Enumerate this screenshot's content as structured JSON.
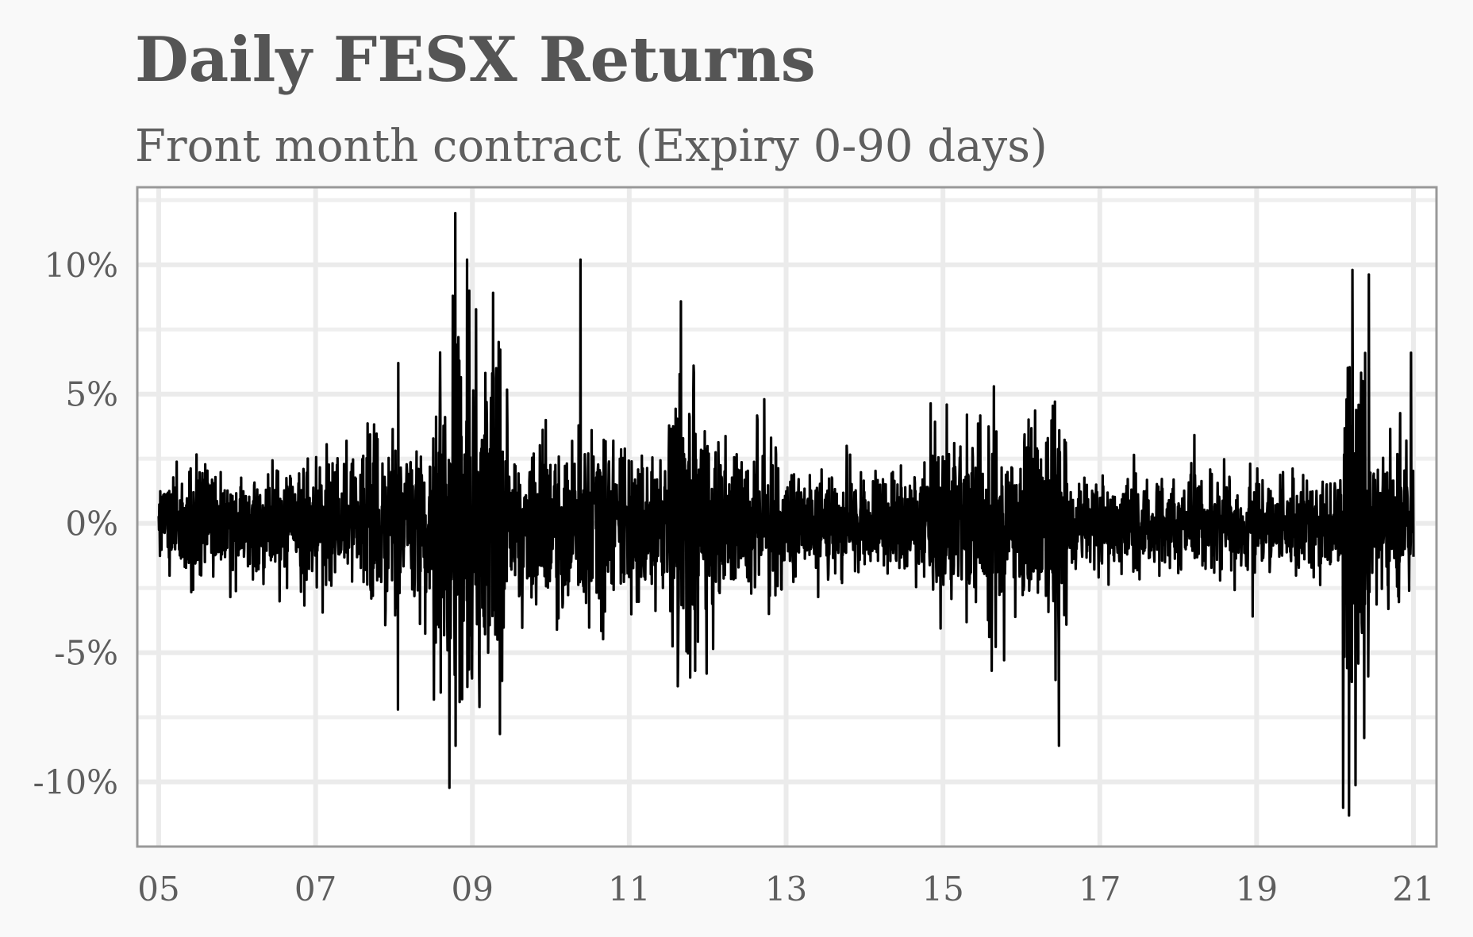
{
  "chart_data": {
    "type": "line",
    "title": "Daily FESX Returns",
    "subtitle": "Front month contract (Expiry 0-90 days)",
    "xlabel": "",
    "ylabel": "",
    "x_unit": "year",
    "x_range": [
      2005.0,
      2021.0
    ],
    "ylim": [
      -12.5,
      13.0
    ],
    "x_ticks": [
      2005,
      2007,
      2009,
      2011,
      2013,
      2015,
      2017,
      2019,
      2021
    ],
    "x_tick_labels": [
      "05",
      "07",
      "09",
      "11",
      "13",
      "15",
      "17",
      "19",
      "21"
    ],
    "y_ticks": [
      -10,
      -5,
      0,
      5,
      10
    ],
    "y_tick_labels": [
      "-10%",
      "-5%",
      "0%",
      "5%",
      "10%"
    ],
    "grid": true,
    "line_color": "#000000",
    "volatility_regimes": [
      [
        2005.0,
        2006.5,
        1.0
      ],
      [
        2006.5,
        2007.6,
        1.2
      ],
      [
        2007.6,
        2008.5,
        1.7
      ],
      [
        2008.5,
        2009.4,
        3.3
      ],
      [
        2009.4,
        2010.3,
        1.6
      ],
      [
        2010.3,
        2010.7,
        2.0
      ],
      [
        2010.7,
        2011.5,
        1.3
      ],
      [
        2011.5,
        2012.0,
        2.6
      ],
      [
        2012.0,
        2012.9,
        1.5
      ],
      [
        2012.9,
        2014.8,
        1.05
      ],
      [
        2014.8,
        2016.0,
        1.7
      ],
      [
        2016.0,
        2016.6,
        1.9
      ],
      [
        2016.6,
        2018.0,
        0.85
      ],
      [
        2018.0,
        2020.1,
        0.9
      ],
      [
        2020.1,
        2020.45,
        3.2
      ],
      [
        2020.45,
        2021.0,
        1.4
      ]
    ],
    "spikes": [
      [
        2008.05,
        -7.2
      ],
      [
        2008.05,
        6.2
      ],
      [
        2008.75,
        8.8
      ],
      [
        2008.78,
        12.0
      ],
      [
        2008.78,
        -8.6
      ],
      [
        2008.82,
        7.2
      ],
      [
        2008.87,
        -6.8
      ],
      [
        2008.93,
        10.2
      ],
      [
        2008.96,
        9.0
      ],
      [
        2008.99,
        -6.0
      ],
      [
        2009.2,
        -5.0
      ],
      [
        2009.25,
        5.8
      ],
      [
        2009.3,
        6.0
      ],
      [
        2010.38,
        10.2
      ],
      [
        2011.62,
        -6.3
      ],
      [
        2011.82,
        6.1
      ],
      [
        2011.84,
        -5.7
      ],
      [
        2012.72,
        4.8
      ],
      [
        2015.3,
        4.2
      ],
      [
        2015.62,
        -5.7
      ],
      [
        2015.65,
        5.3
      ],
      [
        2016.48,
        -8.6
      ],
      [
        2016.48,
        3.6
      ],
      [
        2018.95,
        -3.6
      ],
      [
        2020.18,
        -11.3
      ],
      [
        2020.22,
        9.8
      ],
      [
        2020.35,
        5.5
      ],
      [
        2020.97,
        6.6
      ]
    ]
  }
}
